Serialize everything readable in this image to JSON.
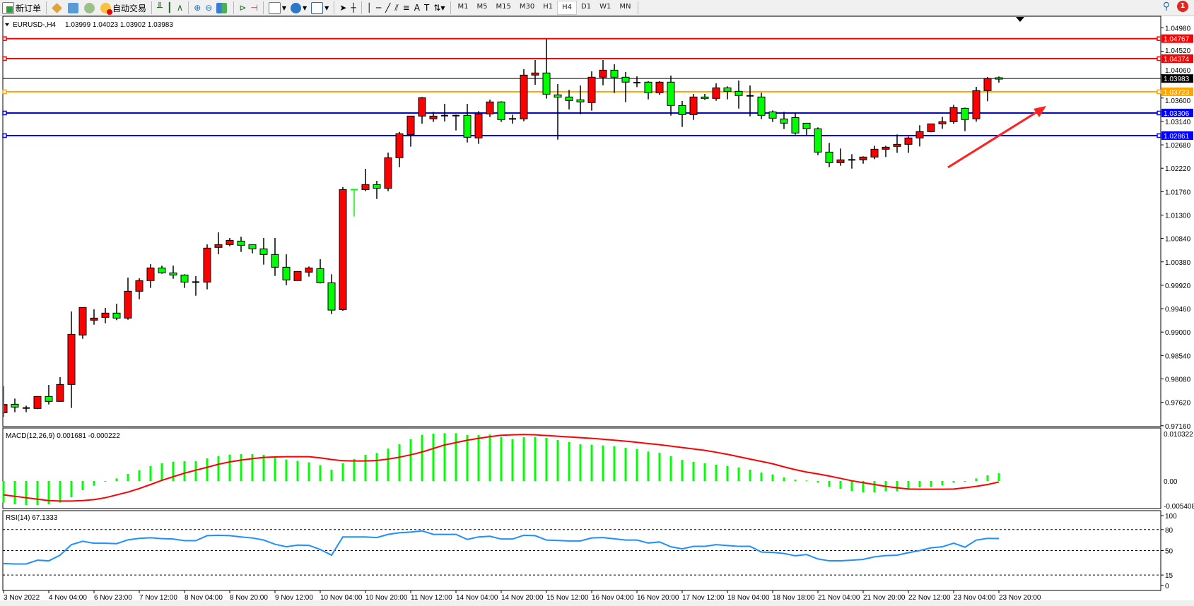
{
  "toolbar": {
    "new_order": "新订单",
    "auto_trading": "自动交易",
    "timeframes": [
      "M1",
      "M5",
      "M15",
      "M30",
      "H1",
      "H4",
      "D1",
      "W1",
      "MN"
    ],
    "active_timeframe": "H4",
    "notification_count": "1"
  },
  "chart_header": {
    "symbol": "EURUSD-,H4",
    "ohlc": "1.03999 1.04023 1.03902 1.03983"
  },
  "colors": {
    "up": "#ff0000",
    "down": "#00ff00",
    "macd_hist": "#00ff00",
    "macd_signal": "#ff0000",
    "rsi": "#1e90ff"
  },
  "price_axis": [
    "1.04980",
    "1.04520",
    "1.04060",
    "1.03600",
    "1.03140",
    "1.02680",
    "1.02220",
    "1.01760",
    "1.01300",
    "1.00840",
    "1.00380",
    "0.99920",
    "0.99460",
    "0.99000",
    "0.98540",
    "0.98080",
    "0.97620",
    "0.97160"
  ],
  "levels": [
    {
      "price": "1.04767",
      "color": "#ff0000"
    },
    {
      "price": "1.04374",
      "color": "#ff0000"
    },
    {
      "price": "1.03983",
      "color": "#000000"
    },
    {
      "price": "1.03723",
      "color": "#ffa500"
    },
    {
      "price": "1.03306",
      "color": "#0000ff"
    },
    {
      "price": "1.02861",
      "color": "#0000ff"
    }
  ],
  "macd": {
    "label": "MACD(12,26,9) 0.001681 -0.000222",
    "axis": [
      "0.010322",
      "0.00",
      "-0.005408"
    ]
  },
  "rsi": {
    "label": "RSI(14) 67.1333",
    "axis": [
      "100",
      "80",
      "50",
      "15",
      "0"
    ]
  },
  "time_axis": [
    "3 Nov 2022",
    "4 Nov 04:00",
    "6 Nov 23:00",
    "7 Nov 12:00",
    "8 Nov 04:00",
    "8 Nov 20:00",
    "9 Nov 12:00",
    "10 Nov 04:00",
    "10 Nov 20:00",
    "11 Nov 12:00",
    "14 Nov 04:00",
    "14 Nov 20:00",
    "15 Nov 12:00",
    "16 Nov 04:00",
    "16 Nov 20:00",
    "17 Nov 12:00",
    "18 Nov 04:00",
    "18 Nov 18:00",
    "21 Nov 04:00",
    "21 Nov 20:00",
    "22 Nov 12:00",
    "23 Nov 04:00",
    "23 Nov 20:00"
  ],
  "chart_data": {
    "type": "candlestick",
    "symbol": "EURUSD-",
    "timeframe": "H4",
    "ylim": [
      0.9716,
      1.0498
    ],
    "ohlc": [
      [
        0.97415,
        0.97938,
        0.97337,
        0.97577
      ],
      [
        0.97582,
        0.97693,
        0.97425,
        0.97526
      ],
      [
        0.97508,
        0.97554,
        0.97425,
        0.97508
      ],
      [
        0.97499,
        0.97735,
        0.97485,
        0.97735
      ],
      [
        0.97735,
        0.97961,
        0.97578,
        0.97638
      ],
      [
        0.97638,
        0.98114,
        0.97638,
        0.97971
      ],
      [
        0.97971,
        0.99405,
        0.97508,
        0.98956
      ],
      [
        0.98942,
        0.99484,
        0.98868,
        0.99484
      ],
      [
        0.99234,
        0.99447,
        0.99146,
        0.99275
      ],
      [
        0.99289,
        0.99474,
        0.99174,
        0.99373
      ],
      [
        0.99373,
        0.99558,
        0.99234,
        0.99275
      ],
      [
        0.99275,
        1.00071,
        0.99243,
        0.99803
      ],
      [
        0.99803,
        1.00057,
        0.99646,
        1.00011
      ],
      [
        1.00011,
        1.00335,
        0.99868,
        1.00261
      ],
      [
        1.00261,
        1.00307,
        1.00145,
        1.00164
      ],
      [
        1.00164,
        1.00307,
        1.00048,
        1.00122
      ],
      [
        1.00122,
        1.00136,
        0.99868,
        0.99983
      ],
      [
        0.99983,
        1.00099,
        0.99715,
        0.99983
      ],
      [
        0.99983,
        1.00724,
        0.9984,
        1.0065
      ],
      [
        1.00664,
        1.0096,
        1.00529,
        1.00719
      ],
      [
        1.00719,
        1.00849,
        1.00687,
        1.00802
      ],
      [
        1.00788,
        1.00876,
        1.00576,
        1.00705
      ],
      [
        1.00719,
        1.00719,
        1.00548,
        1.00636
      ],
      [
        1.00636,
        1.00849,
        1.00326,
        1.00525
      ],
      [
        1.00525,
        1.00849,
        1.00104,
        1.00275
      ],
      [
        1.00275,
        1.00529,
        0.99923,
        1.00025
      ],
      [
        1.00011,
        1.00192,
        1.00011,
        1.00192
      ],
      [
        1.00178,
        1.00289,
        1.0009,
        1.00261
      ],
      [
        1.00247,
        1.00432,
        0.99956,
        0.99969
      ],
      [
        0.99969,
        1.00136,
        0.99354,
        0.99432
      ],
      [
        0.99442,
        1.01848,
        0.99419,
        1.01801
      ],
      [
        1.01803,
        1.01803,
        1.0127,
        1.01801
      ],
      [
        1.01801,
        1.02209,
        1.01769,
        1.01899
      ],
      [
        1.01899,
        1.01973,
        1.01616,
        1.01825
      ],
      [
        1.01825,
        1.02528,
        1.01769,
        1.02426
      ],
      [
        1.02426,
        1.02935,
        1.02241,
        1.02898
      ],
      [
        1.0288,
        1.03245,
        1.02644,
        1.03245
      ],
      [
        1.03245,
        1.0362,
        1.03097,
        1.03606
      ],
      [
        1.0319,
        1.03328,
        1.0313,
        1.03245
      ],
      [
        1.03254,
        1.03486,
        1.03139,
        1.03254
      ],
      [
        1.03254,
        1.03273,
        1.02963,
        1.03254
      ],
      [
        1.03259,
        1.03486,
        1.02727,
        1.02829
      ],
      [
        1.02815,
        1.03342,
        1.02699,
        1.03287
      ],
      [
        1.03287,
        1.03569,
        1.03227,
        1.03523
      ],
      [
        1.03523,
        1.03537,
        1.0313,
        1.03176
      ],
      [
        1.0319,
        1.03273,
        1.03097,
        1.0319
      ],
      [
        1.0319,
        1.04166,
        1.03143,
        1.0405
      ],
      [
        1.0405,
        1.04346,
        1.0386,
        1.04092
      ],
      [
        1.04092,
        1.04754,
        1.03588,
        1.03675
      ],
      [
        1.03662,
        1.03874,
        1.02782,
        1.03615
      ],
      [
        1.0362,
        1.03759,
        1.03375,
        1.03551
      ],
      [
        1.03565,
        1.03847,
        1.03282,
        1.03523
      ],
      [
        1.03509,
        1.04124,
        1.03352,
        1.04009
      ],
      [
        1.04009,
        1.04346,
        1.03851,
        1.04147
      ],
      [
        1.04147,
        1.04263,
        1.03699,
        1.04009
      ],
      [
        1.04009,
        1.0411,
        1.03518,
        1.03912
      ],
      [
        1.03902,
        1.04027,
        1.03814,
        1.03902
      ],
      [
        1.03912,
        1.0393,
        1.03574,
        1.03703
      ],
      [
        1.03703,
        1.0393,
        1.03662,
        1.03912
      ],
      [
        1.03912,
        1.04041,
        1.03254,
        1.03453
      ],
      [
        1.03453,
        1.03541,
        1.03032,
        1.03273
      ],
      [
        1.03273,
        1.0368,
        1.03171,
        1.0362
      ],
      [
        1.0362,
        1.0368,
        1.03564,
        1.03592
      ],
      [
        1.03592,
        1.03888,
        1.03546,
        1.038
      ],
      [
        1.038,
        1.03828,
        1.03574,
        1.03731
      ],
      [
        1.03731,
        1.03944,
        1.03393,
        1.03648
      ],
      [
        1.03643,
        1.03847,
        1.0324,
        1.03643
      ],
      [
        1.0362,
        1.03703,
        1.03185,
        1.03259
      ],
      [
        1.03328,
        1.03356,
        1.03129,
        1.03203
      ],
      [
        1.03189,
        1.03328,
        1.02991,
        1.03106
      ],
      [
        1.03217,
        1.033,
        1.0288,
        1.02912
      ],
      [
        1.03106,
        1.03106,
        1.02866,
        1.02995
      ],
      [
        1.02995,
        1.03023,
        1.02477,
        1.02537
      ],
      [
        1.02537,
        1.02718,
        1.02241,
        1.02329
      ],
      [
        1.02329,
        1.02607,
        1.02269,
        1.02385
      ],
      [
        1.02385,
        1.02496,
        1.02213,
        1.02385
      ],
      [
        1.02385,
        1.02454,
        1.0231,
        1.0244
      ],
      [
        1.0244,
        1.02662,
        1.02398,
        1.02593
      ],
      [
        1.02593,
        1.02662,
        1.0244,
        1.02634
      ],
      [
        1.02648,
        1.02884,
        1.02523,
        1.0269
      ],
      [
        1.0269,
        1.02843,
        1.02523,
        1.02815
      ],
      [
        1.02815,
        1.03065,
        1.02648,
        1.0294
      ],
      [
        1.0294,
        1.03092,
        1.02926,
        1.03092
      ],
      [
        1.03092,
        1.03231,
        1.02995,
        1.03134
      ],
      [
        1.03134,
        1.03467,
        1.03092,
        1.03412
      ],
      [
        1.03398,
        1.03412,
        1.0295,
        1.03176
      ],
      [
        1.0319,
        1.03819,
        1.03134,
        1.03745
      ],
      [
        1.03745,
        1.04015,
        1.03537,
        1.03981
      ],
      [
        1.03999,
        1.04023,
        1.03902,
        1.03983
      ]
    ],
    "macd_main": [
      -0.00473,
      -0.00509,
      -0.00524,
      -0.00524,
      -0.00509,
      -0.00473,
      -0.00355,
      -0.002,
      -0.00103,
      -0.0001,
      0.00057,
      0.00154,
      0.00231,
      0.00324,
      0.00386,
      0.00421,
      0.00432,
      0.00432,
      0.00493,
      0.00545,
      0.00576,
      0.00586,
      0.00586,
      0.00571,
      0.00504,
      0.00468,
      0.00437,
      0.00406,
      0.00344,
      0.00247,
      0.00386,
      0.00478,
      0.00571,
      0.00612,
      0.00709,
      0.00802,
      0.0091,
      0.01007,
      0.01033,
      0.01043,
      0.01043,
      0.01002,
      0.01002,
      0.01013,
      0.00956,
      0.0091,
      0.00956,
      0.00956,
      0.0094,
      0.00894,
      0.00848,
      0.00802,
      0.00791,
      0.00776,
      0.0076,
      0.00725,
      0.00694,
      0.00643,
      0.00617,
      0.0054,
      0.00463,
      0.00416,
      0.00386,
      0.00355,
      0.00324,
      0.00293,
      0.00247,
      0.00185,
      0.00144,
      0.00077,
      0.00031,
      0.0001,
      -0.00036,
      -0.00123,
      -0.0017,
      -0.00216,
      -0.00247,
      -0.00247,
      -0.00226,
      -0.00226,
      -0.0017,
      -0.00139,
      -0.00129,
      -0.00093,
      -0.00036,
      -0.0002,
      0.00057,
      0.00123,
      0.00168
    ],
    "macd_signal": [
      -0.00303,
      -0.00334,
      -0.00365,
      -0.00396,
      -0.00427,
      -0.00437,
      -0.00437,
      -0.00427,
      -0.00406,
      -0.00365,
      -0.00303,
      -0.00242,
      -0.00164,
      -0.00077,
      0.00015,
      0.00093,
      0.0017,
      0.00236,
      0.00298,
      0.00365,
      0.00416,
      0.00457,
      0.00488,
      0.00514,
      0.00524,
      0.00529,
      0.00529,
      0.00529,
      0.00504,
      0.00468,
      0.00442,
      0.00437,
      0.00437,
      0.00447,
      0.00478,
      0.00519,
      0.00571,
      0.00632,
      0.00709,
      0.00786,
      0.00838,
      0.00889,
      0.0093,
      0.00966,
      0.00997,
      0.01007,
      0.01013,
      0.01007,
      0.00992,
      0.00977,
      0.00961,
      0.00946,
      0.0093,
      0.0091,
      0.00889,
      0.00869,
      0.00843,
      0.00817,
      0.00792,
      0.00761,
      0.0073,
      0.00699,
      0.00668,
      0.00627,
      0.00581,
      0.00529,
      0.00478,
      0.00427,
      0.00375,
      0.00308,
      0.00247,
      0.00195,
      0.00154,
      0.00108,
      0.00057,
      5e-05,
      -0.00036,
      -0.00077,
      -0.00118,
      -0.00149,
      -0.00175,
      -0.0018,
      -0.0018,
      -0.0018,
      -0.00175,
      -0.00149,
      -0.00118,
      -0.00077,
      -0.00022
    ],
    "macd_ylim": [
      -0.005408,
      0.010322
    ],
    "rsi": [
      31.4,
      30.8,
      30.8,
      36.2,
      35.3,
      43.4,
      58.4,
      63.2,
      60.5,
      60.5,
      59.9,
      65.3,
      67.4,
      68.3,
      67.1,
      66.5,
      64.1,
      64.1,
      71.3,
      71.9,
      71.3,
      69.5,
      68,
      65,
      59,
      55.4,
      57.8,
      57.5,
      51.5,
      43.4,
      69.5,
      69.5,
      69.5,
      68.6,
      73.1,
      75.5,
      76.4,
      78.2,
      73.1,
      73.1,
      73.1,
      65.9,
      69.5,
      70.4,
      66.5,
      66.5,
      71.9,
      71.3,
      65,
      64.4,
      63.8,
      63.8,
      68,
      68.6,
      66.8,
      65,
      65,
      60.8,
      62.3,
      55.4,
      52.4,
      56,
      56,
      58.4,
      57.2,
      56,
      56,
      47.9,
      47.3,
      45.8,
      42.5,
      44.3,
      38,
      35.3,
      35.3,
      36.2,
      37.4,
      41,
      42.8,
      43.4,
      47,
      50,
      53.9,
      55.4,
      60.5,
      54.8,
      65,
      67.4,
      67.1333
    ],
    "rsi_levels": [
      80,
      50,
      15
    ],
    "rsi_ylim": [
      0,
      100
    ],
    "grid": false
  }
}
